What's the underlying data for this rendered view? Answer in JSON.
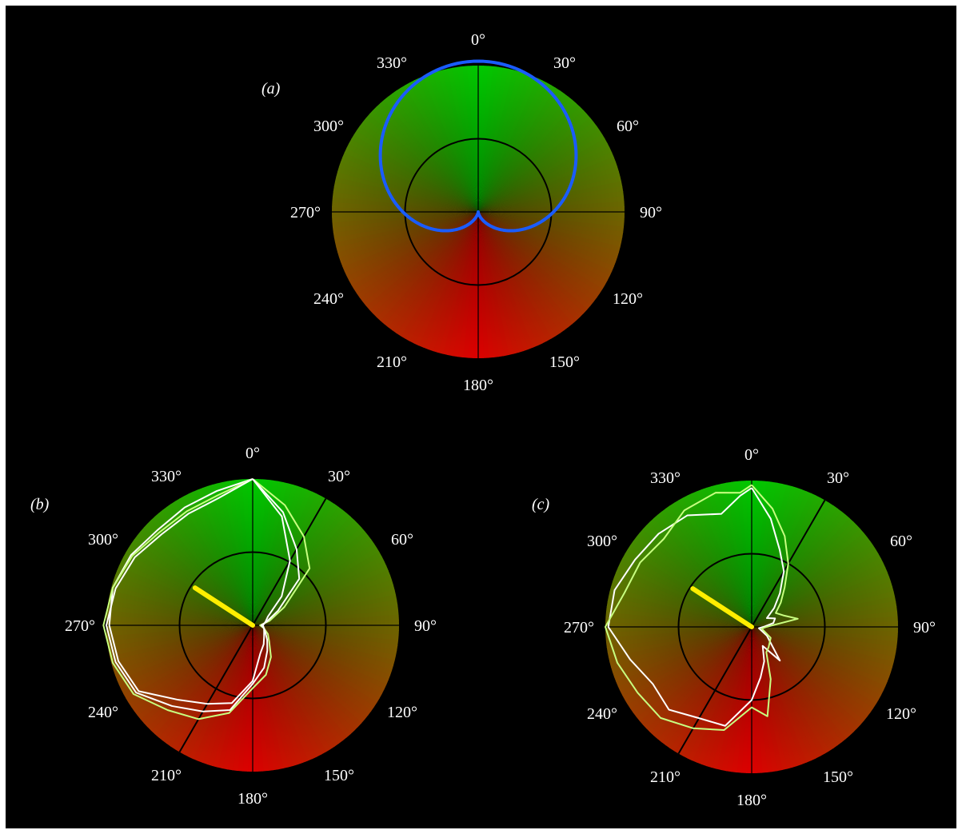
{
  "chart_data": [
    {
      "type": "polar",
      "panel_label": "(a)",
      "angle_unit": "degrees",
      "angle_zero": "top",
      "angle_direction": "clockwise",
      "angle_ticks": [
        "0°",
        "30°",
        "60°",
        "90°",
        "120°",
        "150°",
        "180°",
        "210°",
        "240°",
        "270°",
        "300°",
        "330°"
      ],
      "inner_circle_r": 0.5,
      "background": "green (0°) to red (180°) gradient",
      "series": [
        {
          "shape": "cardioid",
          "color": "#1a5cff",
          "r_formula": "0.5*(1+cos(theta))",
          "max_r": 1.0
        }
      ]
    },
    {
      "type": "polar",
      "panel_label": "(b)",
      "angle_ticks": [
        "0°",
        "30°",
        "60°",
        "90°",
        "120°",
        "150°",
        "180°",
        "210°",
        "240°",
        "270°",
        "300°",
        "330°"
      ],
      "inner_circle_r": 0.5,
      "reference_line_deg": [
        30,
        210
      ],
      "mean_vector": {
        "angle_deg": 303,
        "length": 0.47,
        "color": "#ffee00"
      },
      "series": [
        {
          "color": "#ffffff",
          "theta_deg": [
            0,
            15,
            30,
            45,
            60,
            75,
            90,
            105,
            120,
            135,
            150,
            165,
            180,
            195,
            210,
            225,
            240,
            255,
            270,
            285,
            300,
            315,
            330,
            345,
            360
          ],
          "r": [
            1.0,
            0.77,
            0.51,
            0.28,
            0.12,
            0.09,
            0.07,
            0.08,
            0.09,
            0.11,
            0.15,
            0.2,
            0.38,
            0.55,
            0.62,
            0.72,
            0.9,
            0.95,
            0.98,
            0.99,
            0.96,
            0.92,
            0.93,
            0.95,
            1.0
          ]
        },
        {
          "color": "#c8ff80",
          "theta_deg": [
            0,
            15,
            30,
            45,
            60,
            75,
            90,
            105,
            120,
            135,
            150,
            165,
            180,
            195,
            210,
            225,
            240,
            255,
            270,
            285,
            300,
            315,
            330,
            345,
            360
          ],
          "r": [
            1.0,
            0.85,
            0.7,
            0.55,
            0.25,
            0.12,
            0.05,
            0.08,
            0.12,
            0.16,
            0.25,
            0.35,
            0.43,
            0.62,
            0.74,
            0.82,
            0.94,
            0.99,
            1.02,
            0.99,
            0.95,
            0.9,
            0.9,
            0.92,
            1.0
          ]
        },
        {
          "color": "#ffffff",
          "theta_deg": [
            0,
            15,
            30,
            45,
            60,
            75,
            90,
            105,
            120,
            135,
            150,
            165,
            180,
            195,
            210,
            225,
            240,
            255,
            270,
            285,
            300,
            315,
            330,
            345,
            360
          ],
          "r": [
            1.0,
            0.8,
            0.6,
            0.45,
            0.2,
            0.1,
            0.06,
            0.08,
            0.1,
            0.14,
            0.2,
            0.3,
            0.4,
            0.6,
            0.68,
            0.78,
            0.92,
            0.97,
            1.0,
            0.97,
            0.93,
            0.88,
            0.88,
            0.9,
            1.0
          ]
        }
      ]
    },
    {
      "type": "polar",
      "panel_label": "(c)",
      "angle_ticks": [
        "0°",
        "30°",
        "60°",
        "90°",
        "120°",
        "150°",
        "180°",
        "210°",
        "240°",
        "270°",
        "300°",
        "330°"
      ],
      "inner_circle_r": 0.5,
      "reference_line_deg": [
        30,
        210
      ],
      "mean_vector": {
        "angle_deg": 303,
        "length": 0.48,
        "color": "#ffee00"
      },
      "series": [
        {
          "color": "#ffffff",
          "theta_deg": [
            0,
            10,
            20,
            30,
            40,
            50,
            60,
            70,
            80,
            90,
            100,
            120,
            140,
            150,
            160,
            170,
            180,
            195,
            210,
            225,
            240,
            255,
            270,
            285,
            300,
            315,
            330,
            345,
            355,
            360
          ],
          "r": [
            0.95,
            0.75,
            0.56,
            0.44,
            0.3,
            0.2,
            0.12,
            0.17,
            0.15,
            0.08,
            0.05,
            0.12,
            0.3,
            0.15,
            0.25,
            0.35,
            0.5,
            0.7,
            0.72,
            0.8,
            0.78,
            0.86,
            0.98,
            0.97,
            0.92,
            0.9,
            0.88,
            0.8,
            0.9,
            0.95
          ]
        },
        {
          "color": "#c8ff80",
          "theta_deg": [
            0,
            10,
            20,
            30,
            40,
            50,
            60,
            70,
            80,
            90,
            100,
            120,
            140,
            150,
            160,
            170,
            180,
            195,
            210,
            225,
            240,
            255,
            270,
            285,
            300,
            315,
            330,
            345,
            355,
            360
          ],
          "r": [
            0.97,
            0.82,
            0.66,
            0.5,
            0.35,
            0.26,
            0.19,
            0.23,
            0.32,
            0.1,
            0.07,
            0.15,
            0.18,
            0.2,
            0.38,
            0.62,
            0.55,
            0.73,
            0.8,
            0.88,
            0.9,
            0.95,
            1.0,
            0.9,
            0.88,
            0.85,
            0.92,
            0.95,
            0.92,
            0.97
          ]
        }
      ]
    }
  ]
}
